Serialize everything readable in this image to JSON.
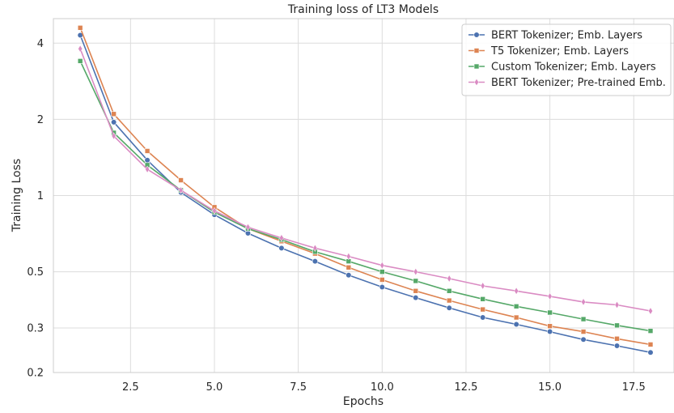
{
  "chart_data": {
    "type": "line",
    "title": "Training loss of LT3 Models",
    "xlabel": "Epochs",
    "ylabel": "Training Loss",
    "yscale": "log",
    "xlim": [
      0.2,
      18.7
    ],
    "ylim": [
      0.2,
      5.0
    ],
    "x_ticks": [
      2.5,
      5.0,
      7.5,
      10.0,
      12.5,
      15.0,
      17.5
    ],
    "x_tick_labels": [
      "2.5",
      "5.0",
      "7.5",
      "10.0",
      "12.5",
      "15.0",
      "17.5"
    ],
    "y_ticks": [
      0.2,
      0.3,
      0.5,
      1,
      2,
      4
    ],
    "y_tick_labels": [
      "0.2",
      "0.3",
      "0.5",
      "1",
      "2",
      "4"
    ],
    "grid": true,
    "legend_position": "top-right",
    "x": [
      1,
      2,
      3,
      4,
      5,
      6,
      7,
      8,
      9,
      10,
      11,
      12,
      13,
      14,
      15,
      16,
      17,
      18
    ],
    "series": [
      {
        "name": "BERT Tokenizer; Emb. Layers",
        "color": "#4c72b0",
        "marker": "circle",
        "values": [
          4.3,
          1.95,
          1.38,
          1.03,
          0.84,
          0.71,
          0.62,
          0.55,
          0.485,
          0.435,
          0.395,
          0.36,
          0.33,
          0.31,
          0.29,
          0.27,
          0.255,
          0.24
        ]
      },
      {
        "name": "T5 Tokenizer; Emb. Layers",
        "color": "#dd8452",
        "marker": "square",
        "values": [
          4.6,
          2.1,
          1.5,
          1.15,
          0.9,
          0.74,
          0.66,
          0.59,
          0.52,
          0.465,
          0.42,
          0.385,
          0.355,
          0.33,
          0.305,
          0.29,
          0.272,
          0.258
        ]
      },
      {
        "name": "Custom Tokenizer; Emb. Layers",
        "color": "#55a868",
        "marker": "square",
        "values": [
          3.4,
          1.77,
          1.32,
          1.05,
          0.86,
          0.74,
          0.67,
          0.6,
          0.55,
          0.5,
          0.46,
          0.42,
          0.39,
          0.365,
          0.345,
          0.325,
          0.307,
          0.292
        ]
      },
      {
        "name": "BERT Tokenizer; Pre-trained Emb.",
        "color": "#da8bc3",
        "marker": "thin_diamond",
        "values": [
          3.8,
          1.72,
          1.27,
          1.05,
          0.87,
          0.75,
          0.68,
          0.62,
          0.575,
          0.53,
          0.5,
          0.47,
          0.44,
          0.42,
          0.4,
          0.38,
          0.37,
          0.35
        ]
      }
    ]
  }
}
